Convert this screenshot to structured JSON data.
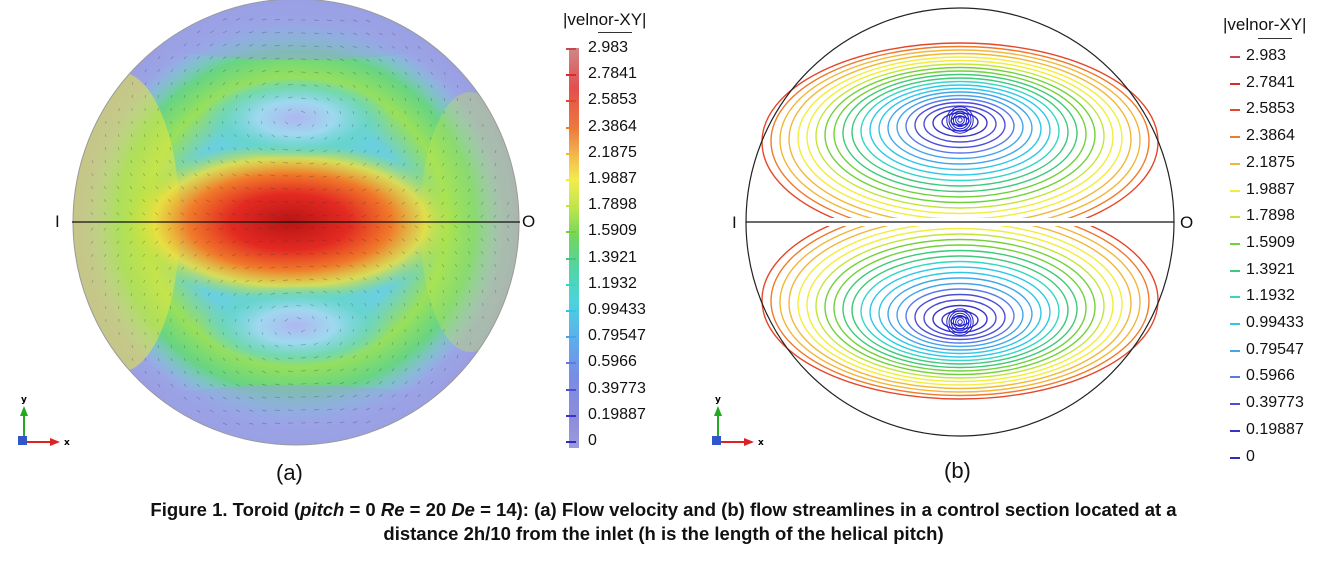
{
  "panel_a": {
    "label": "(a)",
    "inner_label": "I",
    "outer_label": "O",
    "axis_y": "y",
    "axis_x": "x",
    "legend_title": "|velnor-XY|",
    "legend_values": [
      "2.983",
      "2.7841",
      "2.5853",
      "2.3864",
      "2.1875",
      "1.9887",
      "1.7898",
      "1.5909",
      "1.3921",
      "1.1932",
      "0.99433",
      "0.79547",
      "0.5966",
      "0.39773",
      "0.19887",
      "0"
    ]
  },
  "panel_b": {
    "label": "(b)",
    "inner_label": "I",
    "outer_label": "O",
    "axis_y": "y",
    "axis_x": "x",
    "legend_title": "|velnor-XY|",
    "legend_values": [
      "2.983",
      "2.7841",
      "2.5853",
      "2.3864",
      "2.1875",
      "1.9887",
      "1.7898",
      "1.5909",
      "1.3921",
      "1.1932",
      "0.99433",
      "0.79547",
      "0.5966",
      "0.39773",
      "0.19887",
      "0"
    ]
  },
  "legend_colors": [
    "#c7474a",
    "#e0282a",
    "#e5472a",
    "#ee7a2a",
    "#f1b73a",
    "#f2ed3a",
    "#c4e538",
    "#72d13a",
    "#3fc97a",
    "#34d6c4",
    "#2ec7e6",
    "#43a6ea",
    "#5a7be6",
    "#4d4ed8",
    "#3b33c8",
    "#2f2cb7"
  ],
  "caption": {
    "prefix": "Figure 1. Toroid (",
    "pitch_word": "pitch",
    "pitch_value": " = 0 ",
    "re_word": "Re",
    "re_value": " = 20 ",
    "de_word": "De",
    "de_value": " = 14): (a) Flow velocity and (b) flow streamlines in a control section located at a",
    "line2": "distance 2h/10 from the inlet (h is the length of the helical pitch)"
  }
}
